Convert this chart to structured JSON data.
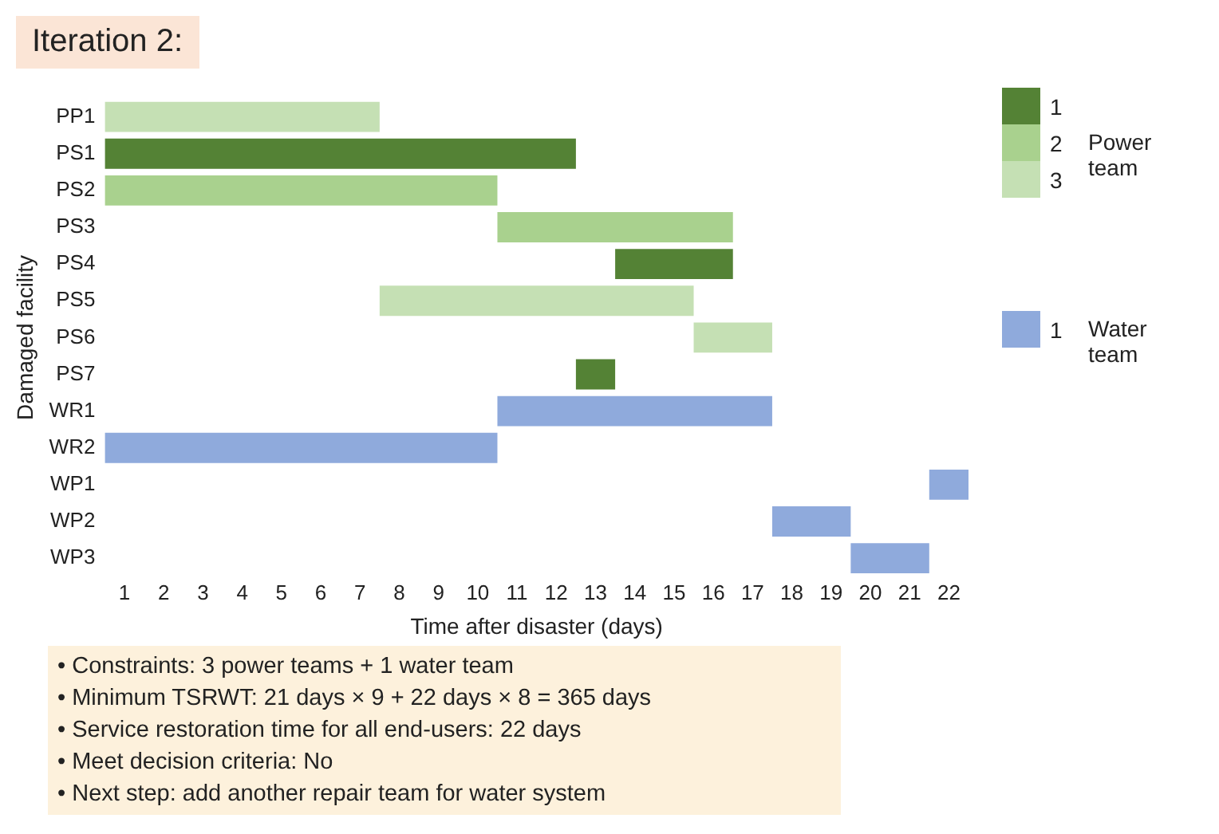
{
  "chart_data": {
    "type": "bar",
    "orientation": "horizontal",
    "title": "Iteration 2:",
    "xlabel": "Time after disaster (days)",
    "ylabel": "Damaged facility",
    "categories": [
      "PP1",
      "PS1",
      "PS2",
      "PS3",
      "PS4",
      "PS5",
      "PS6",
      "PS7",
      "WR1",
      "WR2",
      "WP1",
      "WP2",
      "WP3"
    ],
    "series": [
      {
        "name": "1",
        "color": "#548235",
        "base": [
          null,
          0,
          null,
          null,
          13,
          null,
          null,
          12,
          null,
          null,
          null,
          null,
          null
        ],
        "values": [
          null,
          12,
          null,
          null,
          3,
          null,
          null,
          1,
          null,
          null,
          null,
          null,
          null
        ]
      },
      {
        "name": "2",
        "color": "#a9d18e",
        "base": [
          null,
          null,
          0,
          10,
          null,
          null,
          null,
          null,
          null,
          null,
          null,
          null,
          null
        ],
        "values": [
          null,
          null,
          10,
          6,
          null,
          null,
          null,
          null,
          null,
          null,
          null,
          null,
          null
        ]
      },
      {
        "name": "3",
        "color": "#c5e0b4",
        "base": [
          0,
          null,
          null,
          null,
          null,
          7,
          15,
          null,
          null,
          null,
          null,
          null,
          null
        ],
        "values": [
          7,
          null,
          null,
          null,
          null,
          8,
          2,
          null,
          null,
          null,
          null,
          null,
          null
        ]
      },
      {
        "name": "1",
        "color": "#8faadc",
        "base": [
          null,
          null,
          null,
          null,
          null,
          null,
          null,
          null,
          10,
          0,
          21,
          17,
          19
        ],
        "values": [
          null,
          null,
          null,
          null,
          null,
          null,
          null,
          null,
          7,
          10,
          1,
          2,
          2
        ]
      }
    ],
    "xlim": [
      0,
      22
    ],
    "xticks": [
      {
        "value": 0.5,
        "label": "1"
      },
      {
        "value": 1.5,
        "label": "2"
      },
      {
        "value": 2.5,
        "label": "3"
      },
      {
        "value": 3.5,
        "label": "4"
      },
      {
        "value": 4.5,
        "label": "5"
      },
      {
        "value": 5.5,
        "label": "6"
      },
      {
        "value": 6.5,
        "label": "7"
      },
      {
        "value": 7.5,
        "label": "8"
      },
      {
        "value": 8.5,
        "label": "9"
      },
      {
        "value": 9.5,
        "label": "10"
      },
      {
        "value": 10.5,
        "label": "11"
      },
      {
        "value": 11.5,
        "label": "12"
      },
      {
        "value": 12.5,
        "label": "13"
      },
      {
        "value": 13.5,
        "label": "14"
      },
      {
        "value": 14.5,
        "label": "15"
      },
      {
        "value": 15.5,
        "label": "16"
      },
      {
        "value": 16.5,
        "label": "17"
      },
      {
        "value": 17.5,
        "label": "18"
      },
      {
        "value": 18.5,
        "label": "19"
      },
      {
        "value": 19.5,
        "label": "20"
      },
      {
        "value": 20.5,
        "label": "21"
      },
      {
        "value": 21.5,
        "label": "22"
      }
    ],
    "grid": false,
    "legend": "right",
    "annotations": [
      "Power team",
      "Water team",
      "• Constraints: 3 power teams + 1 water team",
      "• Minimum TSRWT: 21 days × 9 + 22 days × 8 = 365 days",
      "• Service restoration time for all end-users: 22 days",
      "• Meet decision criteria: No",
      "• Next step: add another repair team for water system"
    ]
  }
}
